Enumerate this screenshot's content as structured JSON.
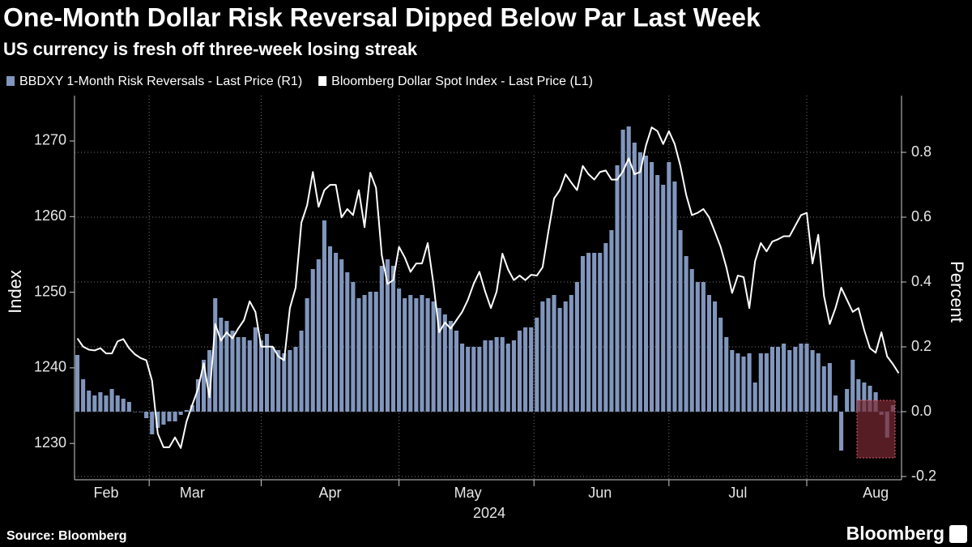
{
  "chart_data": {
    "type": "combo",
    "title": "One-Month Dollar Risk Reversal Dipped Below Par Last Week",
    "subtitle": "US currency is fresh off three-week losing streak",
    "x_label": "2024",
    "y_label": "Index",
    "y2_label": "Percent",
    "source": "Source: Bloomberg",
    "brand": "Bloomberg",
    "grid": true,
    "categories": [
      null,
      null,
      null,
      null,
      null,
      "Feb",
      null,
      null,
      null,
      null,
      null,
      null,
      null,
      null,
      null,
      null,
      null,
      null,
      null,
      null,
      "Mar",
      null,
      null,
      null,
      null,
      null,
      null,
      null,
      null,
      null,
      null,
      null,
      null,
      null,
      null,
      null,
      null,
      null,
      null,
      null,
      null,
      null,
      null,
      null,
      "Apr",
      null,
      null,
      null,
      null,
      null,
      null,
      null,
      null,
      null,
      null,
      null,
      null,
      null,
      null,
      null,
      null,
      null,
      null,
      null,
      null,
      null,
      null,
      null,
      "May",
      null,
      null,
      null,
      null,
      null,
      null,
      null,
      null,
      null,
      null,
      null,
      null,
      null,
      null,
      null,
      null,
      null,
      null,
      null,
      null,
      null,
      null,
      "Jun",
      null,
      null,
      null,
      null,
      null,
      null,
      null,
      null,
      null,
      null,
      null,
      null,
      null,
      null,
      null,
      null,
      null,
      null,
      null,
      null,
      null,
      null,
      null,
      "Jul",
      null,
      null,
      null,
      null,
      null,
      null,
      null,
      null,
      null,
      null,
      null,
      null,
      null,
      null,
      null,
      null,
      null,
      null,
      null,
      null,
      null,
      null,
      null,
      "Aug",
      null,
      null,
      null,
      null
    ],
    "series": [
      {
        "name": "BBDXY 1-Month Risk Reversals - Last Price (R1)",
        "type": "bar",
        "axis": "y2",
        "color": "#8196bd",
        "values": [
          0.175,
          0.1,
          0.065,
          0.05,
          0.06,
          0.05,
          0.07,
          0.05,
          0.04,
          0.03,
          0,
          0,
          -0.02,
          -0.07,
          -0.05,
          -0.04,
          -0.03,
          -0.03,
          -0.01,
          0.005,
          0.02,
          0.1,
          0.16,
          0.19,
          0.35,
          0.29,
          0.28,
          0.25,
          0.23,
          0.23,
          0.22,
          0.26,
          0.22,
          0.24,
          0.2,
          0.19,
          0.18,
          0.19,
          0.2,
          0.25,
          0.35,
          0.44,
          0.47,
          0.59,
          0.51,
          0.49,
          0.47,
          0.43,
          0.4,
          0.35,
          0.36,
          0.37,
          0.37,
          0.45,
          0.47,
          0.45,
          0.38,
          0.35,
          0.36,
          0.35,
          0.36,
          0.35,
          0.34,
          0.32,
          0.3,
          0.28,
          0.25,
          0.21,
          0.2,
          0.2,
          0.2,
          0.22,
          0.22,
          0.23,
          0.23,
          0.21,
          0.22,
          0.25,
          0.26,
          0.26,
          0.29,
          0.34,
          0.35,
          0.36,
          0.32,
          0.34,
          0.36,
          0.4,
          0.48,
          0.49,
          0.49,
          0.49,
          0.52,
          0.56,
          0.76,
          0.87,
          0.88,
          0.83,
          0.8,
          0.79,
          0.77,
          0.73,
          0.7,
          0.77,
          0.71,
          0.56,
          0.48,
          0.44,
          0.4,
          0.4,
          0.36,
          0.34,
          0.29,
          0.23,
          0.19,
          0.18,
          0.17,
          0.18,
          0.09,
          0.18,
          0.18,
          0.2,
          0.2,
          0.21,
          0.19,
          0.2,
          0.21,
          0.21,
          0.19,
          0.18,
          0.14,
          0.15,
          0.05,
          -0.12,
          0.07,
          0.16,
          0.1,
          0.09,
          0.08,
          0.06,
          -0.01,
          -0.08,
          0.02,
          0
        ]
      },
      {
        "name": "Bloomberg Dollar Spot Index - Last Price (L1)",
        "type": "line",
        "color": "#ffffff",
        "values": [
          1243.9,
          1242.8,
          1242.4,
          1242.3,
          1242.6,
          1241.9,
          1241.9,
          1243.5,
          1243.8,
          1242.6,
          1241.8,
          1241.3,
          1241.0,
          1238.3,
          1231.3,
          1229.5,
          1229.5,
          1230.8,
          1229.4,
          1232.9,
          1235.1,
          1237.2,
          1240.6,
          1236.1,
          1245.8,
          1243.6,
          1244.7,
          1243.9,
          1245.2,
          1246.3,
          1248.8,
          1247.4,
          1242.8,
          1242.8,
          1242.8,
          1241.5,
          1241.0,
          1247.9,
          1250.6,
          1259.2,
          1261.5,
          1265.9,
          1261.3,
          1263.5,
          1264.2,
          1264.2,
          1259.9,
          1261.0,
          1260.2,
          1263.5,
          1258.6,
          1265.8,
          1263.8,
          1254.9,
          1251.1,
          1251.6,
          1256.0,
          1254.6,
          1252.7,
          1253.8,
          1253.8,
          1256.5,
          1251.1,
          1244.7,
          1246.0,
          1245.2,
          1246.3,
          1247.4,
          1249.0,
          1251.1,
          1252.7,
          1250.1,
          1247.9,
          1250.1,
          1255.1,
          1253.0,
          1251.6,
          1252.2,
          1251.6,
          1252.3,
          1252.2,
          1253.3,
          1258.0,
          1262.4,
          1263.5,
          1265.6,
          1264.5,
          1263.5,
          1266.7,
          1265.6,
          1264.9,
          1265.9,
          1266.1,
          1264.9,
          1264.9,
          1266.0,
          1267.7,
          1265.6,
          1265.9,
          1269.4,
          1271.8,
          1271.3,
          1269.6,
          1271.3,
          1269.6,
          1266.7,
          1262.9,
          1260.2,
          1260.5,
          1261.0,
          1259.9,
          1258.0,
          1256.0,
          1253.3,
          1249.9,
          1252.2,
          1252.0,
          1247.9,
          1254.1,
          1256.5,
          1255.4,
          1256.7,
          1257.0,
          1257.4,
          1257.4,
          1258.8,
          1260.2,
          1260.5,
          1253.8,
          1257.6,
          1249.5,
          1245.8,
          1247.9,
          1250.6,
          1249.0,
          1247.4,
          1247.9,
          1245.0,
          1242.6,
          1242.0,
          1244.7,
          1241.5,
          1240.5,
          1239.3
        ]
      }
    ],
    "ylim": [
      1225.2,
      1276
    ],
    "yticks": [
      1230,
      1240,
      1250,
      1260,
      1270
    ],
    "y2lim": [
      -0.21,
      0.975
    ],
    "y2ticks": [
      -0.2,
      {
        "value": 0,
        "label": "0.0"
      },
      0.2,
      0.4,
      0.6,
      0.8
    ]
  }
}
